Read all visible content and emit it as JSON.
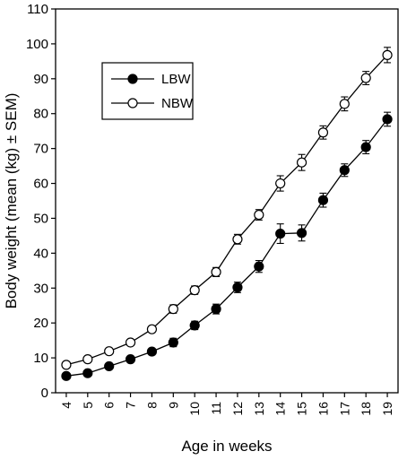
{
  "chart_data": {
    "type": "line",
    "title": "",
    "xlabel": "Age in weeks",
    "ylabel": "Body weight (mean (kg) ± SEM)",
    "x": [
      4,
      5,
      6,
      7,
      8,
      9,
      10,
      11,
      12,
      13,
      14,
      15,
      16,
      17,
      18,
      19
    ],
    "xlim": [
      3.5,
      19.5
    ],
    "ylim": [
      0,
      110
    ],
    "yticks": [
      0,
      10,
      20,
      30,
      40,
      50,
      60,
      70,
      80,
      90,
      100,
      110
    ],
    "grid": false,
    "legend_position": "top-left",
    "series": [
      {
        "name": "LBW",
        "marker": "filled-circle",
        "color": "#000000",
        "values": [
          4.8,
          5.6,
          7.6,
          9.6,
          11.8,
          14.4,
          19.3,
          24.0,
          30.2,
          36.2,
          45.6,
          45.8,
          55.2,
          63.8,
          70.4,
          78.4
        ],
        "sem": [
          0.6,
          0.6,
          0.7,
          0.8,
          0.9,
          1.2,
          1.2,
          1.4,
          1.5,
          1.7,
          2.8,
          2.3,
          2.0,
          1.8,
          1.9,
          2.0
        ]
      },
      {
        "name": "NBW",
        "marker": "open-circle",
        "color": "#000000",
        "values": [
          8.0,
          9.6,
          11.9,
          14.4,
          18.2,
          24.0,
          29.4,
          34.6,
          44.0,
          51.0,
          60.0,
          66.0,
          74.6,
          82.8,
          90.2,
          96.8
        ],
        "sem": [
          0.6,
          0.6,
          0.7,
          0.8,
          0.9,
          1.2,
          1.2,
          1.3,
          1.4,
          1.5,
          2.2,
          2.3,
          1.9,
          2.0,
          1.9,
          2.2
        ]
      }
    ]
  }
}
